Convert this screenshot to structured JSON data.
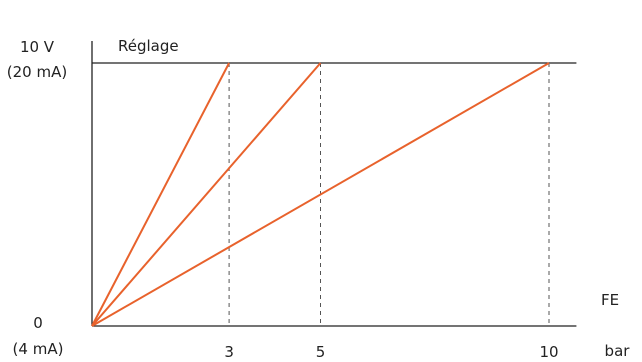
{
  "chart_data": {
    "type": "line",
    "title": "",
    "ylabel": "Réglage",
    "xlabel": "FE",
    "x_unit": "bar",
    "x_ticks": [
      "3",
      "5",
      "10"
    ],
    "y_top_label": [
      "10 V",
      "(20 mA)"
    ],
    "y_bottom_label": [
      "0",
      "(4 mA)"
    ],
    "xlim": [
      0,
      10.6
    ],
    "ylim": [
      0,
      10
    ],
    "grid": false,
    "series": [
      {
        "x": [
          0,
          3
        ],
        "y": [
          0,
          10
        ]
      },
      {
        "x": [
          0,
          5
        ],
        "y": [
          0,
          10
        ]
      },
      {
        "x": [
          0,
          10
        ],
        "y": [
          0,
          10
        ]
      }
    ],
    "colors": {
      "line": "#e8622c",
      "axis": "#222222",
      "guide": "#555555"
    }
  }
}
